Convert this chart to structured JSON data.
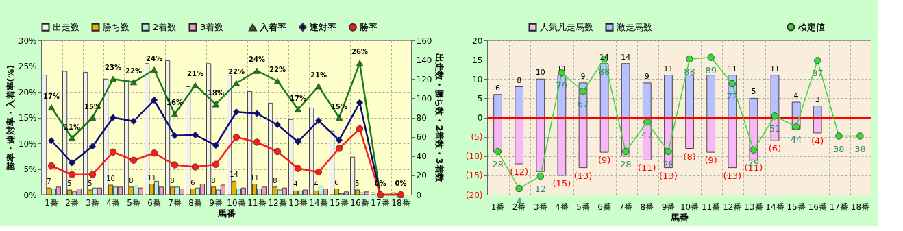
{
  "chart_data": [
    {
      "type": "bar",
      "categories": [
        "1番",
        "2番",
        "3番",
        "4番",
        "5番",
        "6番",
        "7番",
        "8番",
        "9番",
        "10番",
        "11番",
        "12番",
        "13番",
        "14番",
        "15番",
        "16番",
        "17番",
        "18番"
      ],
      "xlabel": "馬番",
      "ylabel": "勝率・連対率・入着率(%)",
      "y2label": "出走数・勝ち数・2着数・3着数",
      "ylim": [
        0,
        30
      ],
      "yticks": [
        {
          "value": 0,
          "label": "0%"
        },
        {
          "value": 5,
          "label": "5%"
        },
        {
          "value": 10,
          "label": "10%"
        },
        {
          "value": 15,
          "label": "15%"
        },
        {
          "value": 20,
          "label": "20%"
        },
        {
          "value": 25,
          "label": "25%"
        },
        {
          "value": 30,
          "label": "30%"
        }
      ],
      "y2lim": [
        0,
        160
      ],
      "y2ticks": [
        0,
        20,
        40,
        60,
        80,
        100,
        120,
        140,
        160
      ],
      "grid": true,
      "legend": "top",
      "series": [
        {
          "name": "出走数",
          "axis": "y2",
          "color": "#f0f0f0",
          "values": [
            124,
            128,
            127,
            120,
            119,
            136,
            139,
            112,
            136,
            124,
            107,
            95,
            78,
            90,
            66,
            39,
            2,
            2
          ]
        },
        {
          "name": "勝ち数",
          "axis": "y2",
          "color": "#e6b400",
          "values": [
            7,
            5,
            5,
            10,
            8,
            11,
            8,
            6,
            8,
            14,
            11,
            8,
            4,
            4,
            6,
            5,
            null,
            null
          ],
          "value_labels": [
            "7",
            "5",
            "5",
            "10",
            "8",
            "11",
            "8",
            "6",
            "8",
            "14",
            "11",
            "8",
            "4",
            "4",
            "6",
            "5",
            null,
            null
          ]
        },
        {
          "name": "2着数",
          "axis": "y2",
          "color": "#b3f0f0",
          "values": [
            6,
            3,
            7,
            8,
            9,
            14,
            8,
            7,
            5,
            6,
            6,
            5,
            4,
            9,
            1,
            2,
            null,
            null
          ]
        },
        {
          "name": "3着数",
          "axis": "y2",
          "color": "#f39ac8",
          "values": [
            8,
            6,
            7,
            8,
            7,
            8,
            6,
            11,
            10,
            7,
            8,
            7,
            5,
            6,
            3,
            3,
            null,
            null
          ]
        },
        {
          "name": "入着率",
          "type": "line",
          "color": "#157f15",
          "marker": "triangle",
          "values": [
            17.0,
            11.0,
            15.0,
            22.5,
            21.9,
            24.3,
            15.7,
            21.3,
            17.6,
            21.7,
            24.1,
            22.1,
            16.6,
            21.1,
            15.0,
            25.6,
            0,
            0
          ],
          "value_labels": [
            "17%",
            "11%",
            "15%",
            "23%",
            "22%",
            "24%",
            "16%",
            "21%",
            "18%",
            "22%",
            "24%",
            "22%",
            "17%",
            "21%",
            "15%",
            "26%",
            "0%",
            "0%"
          ]
        },
        {
          "name": "連対率",
          "type": "line",
          "color": "#0a0a80",
          "marker": "diamond",
          "values": [
            10.5,
            6.2,
            9.4,
            15.0,
            14.3,
            18.4,
            11.5,
            11.6,
            9.6,
            16.1,
            15.8,
            13.6,
            10.3,
            14.4,
            10.6,
            17.9,
            0,
            null
          ]
        },
        {
          "name": "勝率",
          "type": "line",
          "color": "#ff1a1a",
          "marker": "circle",
          "values": [
            5.6,
            3.9,
            3.9,
            8.3,
            6.7,
            8.1,
            5.8,
            5.4,
            5.9,
            11.2,
            10.2,
            8.4,
            5.1,
            4.4,
            9.0,
            12.8,
            0,
            0
          ]
        }
      ]
    },
    {
      "type": "bar",
      "stacked": true,
      "categories": [
        "1番",
        "2番",
        "3番",
        "4番",
        "5番",
        "6番",
        "7番",
        "8番",
        "9番",
        "10番",
        "11番",
        "12番",
        "13番",
        "14番",
        "15番",
        "16番",
        "17番",
        "18番"
      ],
      "xlabel": "馬番",
      "ylim": [
        -20,
        20
      ],
      "yticks": [
        {
          "value": -20,
          "label": "(20)"
        },
        {
          "value": -15,
          "label": "(15)"
        },
        {
          "value": -10,
          "label": "(10)"
        },
        {
          "value": -5,
          "label": "(5)"
        },
        0,
        5,
        10,
        15,
        20
      ],
      "y2lim": [
        0,
        100
      ],
      "grid": true,
      "legend": "top",
      "ref_lines": [
        {
          "axis": "y",
          "value": 0,
          "color": "#ff0000"
        }
      ],
      "series": [
        {
          "name": "人気凡走馬数",
          "color": "#f8b8f8",
          "values": [
            -9,
            -12,
            -14,
            -15,
            -13,
            -9,
            -10,
            -11,
            -13,
            -8,
            -9,
            -13,
            -11,
            -6,
            -3,
            -4,
            null,
            null
          ],
          "value_labels": [
            null,
            "(12)",
            null,
            "(15)",
            "(13)",
            "(9)",
            null,
            "(11)",
            "(13)",
            "(8)",
            "(9)",
            "(13)",
            "(11)",
            "(6)",
            null,
            "(4)",
            null,
            null
          ]
        },
        {
          "name": "激走馬数",
          "color": "#b8c0ff",
          "values": [
            6,
            8,
            10,
            11,
            9,
            14,
            14,
            9,
            11,
            11,
            11,
            11,
            5,
            11,
            4,
            3,
            null,
            null
          ],
          "value_labels": [
            "6",
            "8",
            "10",
            "11",
            "9",
            "14",
            "14",
            "9",
            "11",
            null,
            null,
            "11",
            "5",
            "11",
            "4",
            "3",
            null,
            null
          ]
        },
        {
          "name": "検定値",
          "type": "line",
          "axis": "y2",
          "color": "#33dd33",
          "marker": "circle",
          "values": [
            28,
            4,
            12,
            79,
            67,
            88,
            28,
            47,
            28,
            88,
            89,
            72,
            29,
            51,
            44,
            87,
            38,
            38
          ],
          "value_labels": [
            "28",
            "4",
            "12",
            "79",
            "67",
            "88",
            "28",
            "47",
            "28",
            "88",
            "89",
            "72",
            "29",
            "51",
            "44",
            "87",
            "38",
            "38"
          ]
        }
      ]
    }
  ]
}
